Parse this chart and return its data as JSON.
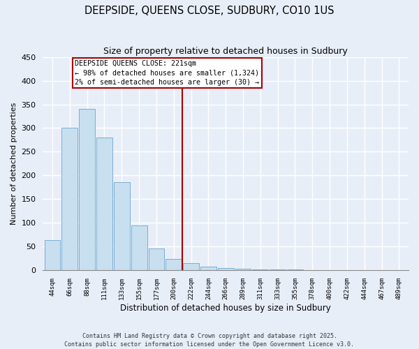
{
  "title": "DEEPSIDE, QUEENS CLOSE, SUDBURY, CO10 1US",
  "subtitle": "Size of property relative to detached houses in Sudbury",
  "xlabel": "Distribution of detached houses by size in Sudbury",
  "ylabel": "Number of detached properties",
  "bar_labels": [
    "44sqm",
    "66sqm",
    "88sqm",
    "111sqm",
    "133sqm",
    "155sqm",
    "177sqm",
    "200sqm",
    "222sqm",
    "244sqm",
    "266sqm",
    "289sqm",
    "311sqm",
    "333sqm",
    "355sqm",
    "378sqm",
    "400sqm",
    "422sqm",
    "444sqm",
    "467sqm",
    "489sqm"
  ],
  "bar_values": [
    63,
    301,
    340,
    280,
    185,
    95,
    46,
    23,
    14,
    8,
    5,
    3,
    2,
    1,
    1,
    0,
    0,
    0,
    0,
    0,
    0
  ],
  "bar_color": "#c8dff0",
  "bar_edge_color": "#7aaed4",
  "vline_color": "#aa0000",
  "annotation_line1": "DEEPSIDE QUEENS CLOSE: 221sqm",
  "annotation_line2": "← 98% of detached houses are smaller (1,324)",
  "annotation_line3": "2% of semi-detached houses are larger (30) →",
  "annotation_box_color": "#ffffff",
  "annotation_box_edge": "#aa0000",
  "ylim": [
    0,
    450
  ],
  "yticks": [
    0,
    50,
    100,
    150,
    200,
    250,
    300,
    350,
    400,
    450
  ],
  "footer_line1": "Contains HM Land Registry data © Crown copyright and database right 2025.",
  "footer_line2": "Contains public sector information licensed under the Open Government Licence v3.0.",
  "bg_color": "#e8eef8",
  "grid_color": "#ffffff"
}
